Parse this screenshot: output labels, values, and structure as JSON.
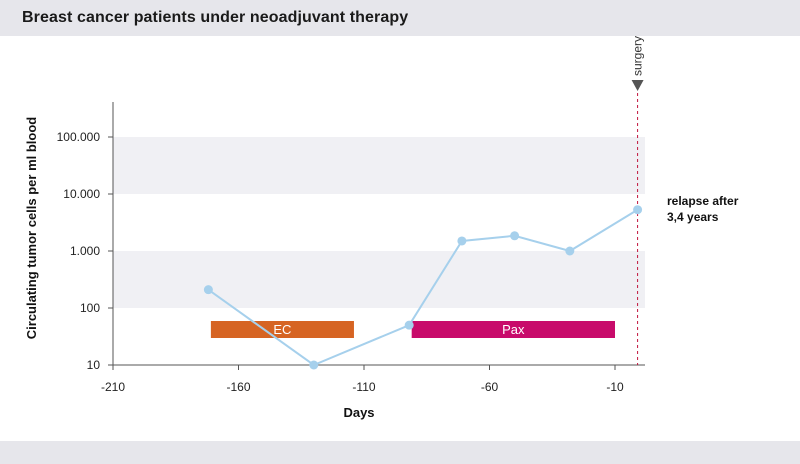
{
  "chart_data": {
    "type": "line",
    "title": "Breast cancer patients under neoadjuvant therapy",
    "xlabel": "Days",
    "ylabel": "Circulating tumor cells per ml blood",
    "xlim": [
      -210,
      0
    ],
    "ylim": [
      10,
      100000
    ],
    "y_scale": "log",
    "x_ticks": [
      -210,
      -160,
      -110,
      -60,
      -10
    ],
    "x_tick_labels": [
      "-210",
      "-160",
      "-110",
      "-60",
      "-10"
    ],
    "y_ticks": [
      10,
      100,
      1000,
      10000,
      100000
    ],
    "y_tick_labels": [
      "10",
      "100",
      "1.000",
      "10.000",
      "100.000"
    ],
    "series": [
      {
        "x": [
          -172,
          -130,
          -92,
          -71,
          -50,
          -28,
          -1
        ],
        "y": [
          210,
          10,
          50,
          1500,
          1850,
          1000,
          5300
        ],
        "color": "#a6d0ec"
      }
    ],
    "phases": [
      {
        "label": "EC",
        "x_start": -171,
        "x_end": -114,
        "color": "#d66423"
      },
      {
        "label": "Pax",
        "x_start": -91,
        "x_end": -10,
        "color": "#c80b6b"
      }
    ],
    "surgery": {
      "label": "surgery",
      "x": -1
    },
    "annotation": {
      "lines": [
        "relapse after",
        "3,4 years"
      ]
    },
    "band_color": "#f0f0f4",
    "grid": false
  }
}
